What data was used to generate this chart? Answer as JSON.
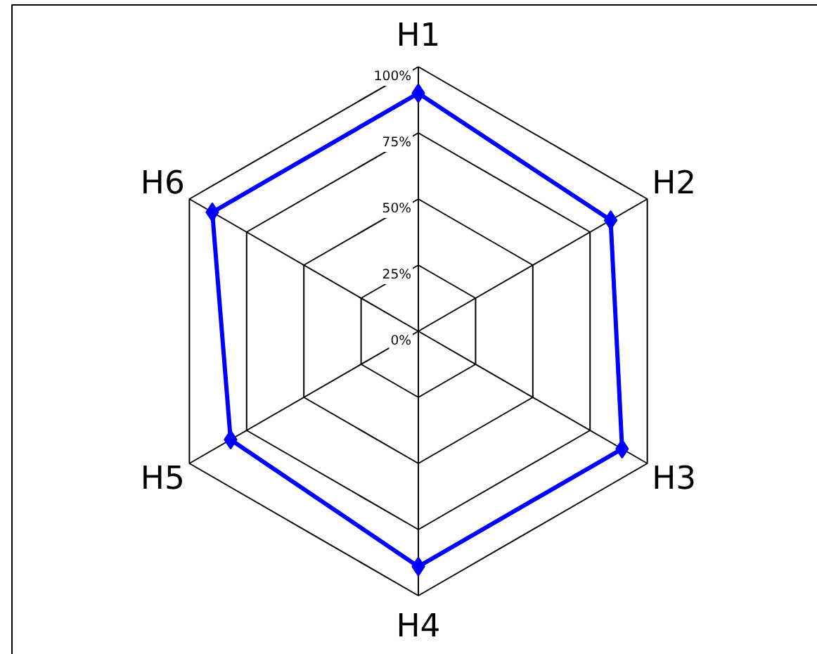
{
  "chart_data": {
    "type": "radar",
    "categories": [
      "H1",
      "H2",
      "H3",
      "H4",
      "H5",
      "H6"
    ],
    "series": [
      {
        "color": "#0000ff",
        "values": [
          90,
          84,
          89,
          89,
          82,
          90
        ]
      }
    ],
    "ylim": [
      0,
      100
    ],
    "yticks": [
      {
        "value": 0,
        "label": "0%"
      },
      {
        "value": 25,
        "label": "25%"
      },
      {
        "value": 50,
        "label": "50%"
      },
      {
        "value": 75,
        "label": "75%"
      },
      {
        "value": 100,
        "label": "100%"
      }
    ],
    "grid": true,
    "marker": "diamond",
    "line_style": "solid"
  }
}
